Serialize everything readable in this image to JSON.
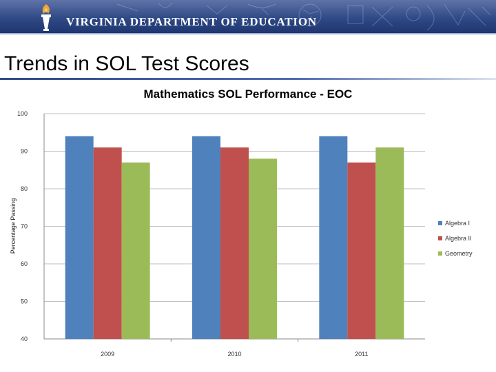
{
  "header": {
    "department": "VIRGINIA DEPARTMENT OF EDUCATION",
    "logo_icon": "torch-icon",
    "banner_color": "#2f4a86"
  },
  "slide": {
    "title": "Trends in SOL Test Scores"
  },
  "chart_data": {
    "type": "bar",
    "title": "Mathematics SOL Performance - EOC",
    "xlabel": "",
    "ylabel": "Percentage Passing",
    "categories": [
      "2009",
      "2010",
      "2011"
    ],
    "series": [
      {
        "name": "Algebra I",
        "values": [
          94,
          94,
          94
        ],
        "color": "#4f81bd"
      },
      {
        "name": "Algebra II",
        "values": [
          91,
          91,
          87
        ],
        "color": "#c0504d"
      },
      {
        "name": "Geometry",
        "values": [
          87,
          88,
          91
        ],
        "color": "#9bbb59"
      }
    ],
    "ylim": [
      40,
      100
    ],
    "yticks": [
      40,
      50,
      60,
      70,
      80,
      90,
      100
    ],
    "grid": true,
    "legend_position": "right"
  }
}
